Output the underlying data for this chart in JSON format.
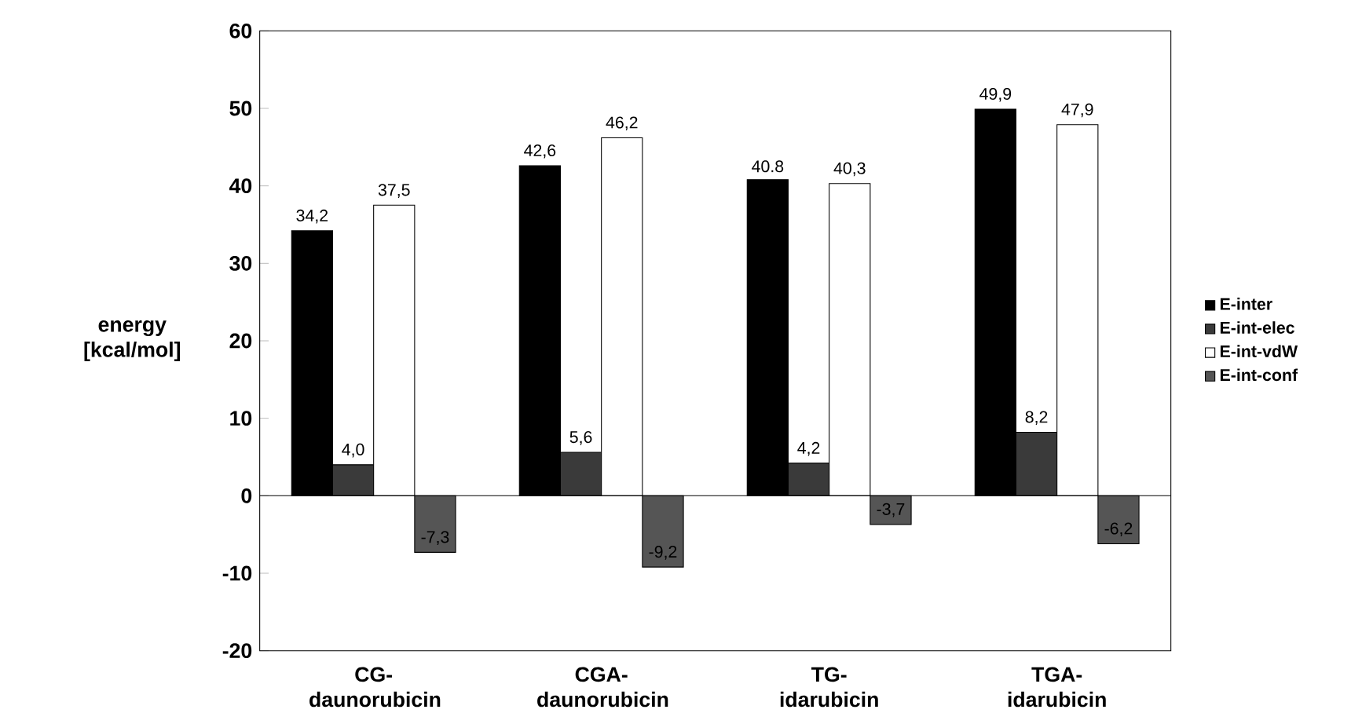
{
  "chart_data": {
    "type": "bar",
    "ylabel": "energy [kcal/mol]",
    "categories": [
      "CG- daunorubicin",
      "CGA- daunorubicin",
      "TG- idarubicin",
      "TGA- idarubicin"
    ],
    "series": [
      {
        "name": "E-inter",
        "color": "#000000",
        "values": [
          34.2,
          42.6,
          40.8,
          49.9
        ],
        "value_labels": [
          "34,2",
          "42,6",
          "40.8",
          "49,9"
        ]
      },
      {
        "name": "E-int-elec",
        "color": "#3a3a3a",
        "values": [
          4.0,
          5.6,
          4.2,
          8.2
        ],
        "value_labels": [
          "4,0",
          "5,6",
          "4,2",
          "8,2"
        ]
      },
      {
        "name": "E-int-vdW",
        "color": "#ffffff",
        "values": [
          37.5,
          46.2,
          40.3,
          47.9
        ],
        "value_labels": [
          "37,5",
          "46,2",
          "40,3",
          "47,9"
        ]
      },
      {
        "name": "E-int-conf",
        "color": "#555555",
        "values": [
          -7.3,
          -9.2,
          -3.7,
          -6.2
        ],
        "value_labels": [
          "-7,3",
          "-9,2",
          "-3,7",
          "-6,2"
        ]
      }
    ],
    "ylim": [
      -20,
      60
    ],
    "yticks": [
      -20,
      -10,
      0,
      10,
      20,
      30,
      40,
      50,
      60
    ],
    "legend": "right",
    "ref_lines": [
      {
        "axis": "y",
        "value": 0
      }
    ]
  }
}
